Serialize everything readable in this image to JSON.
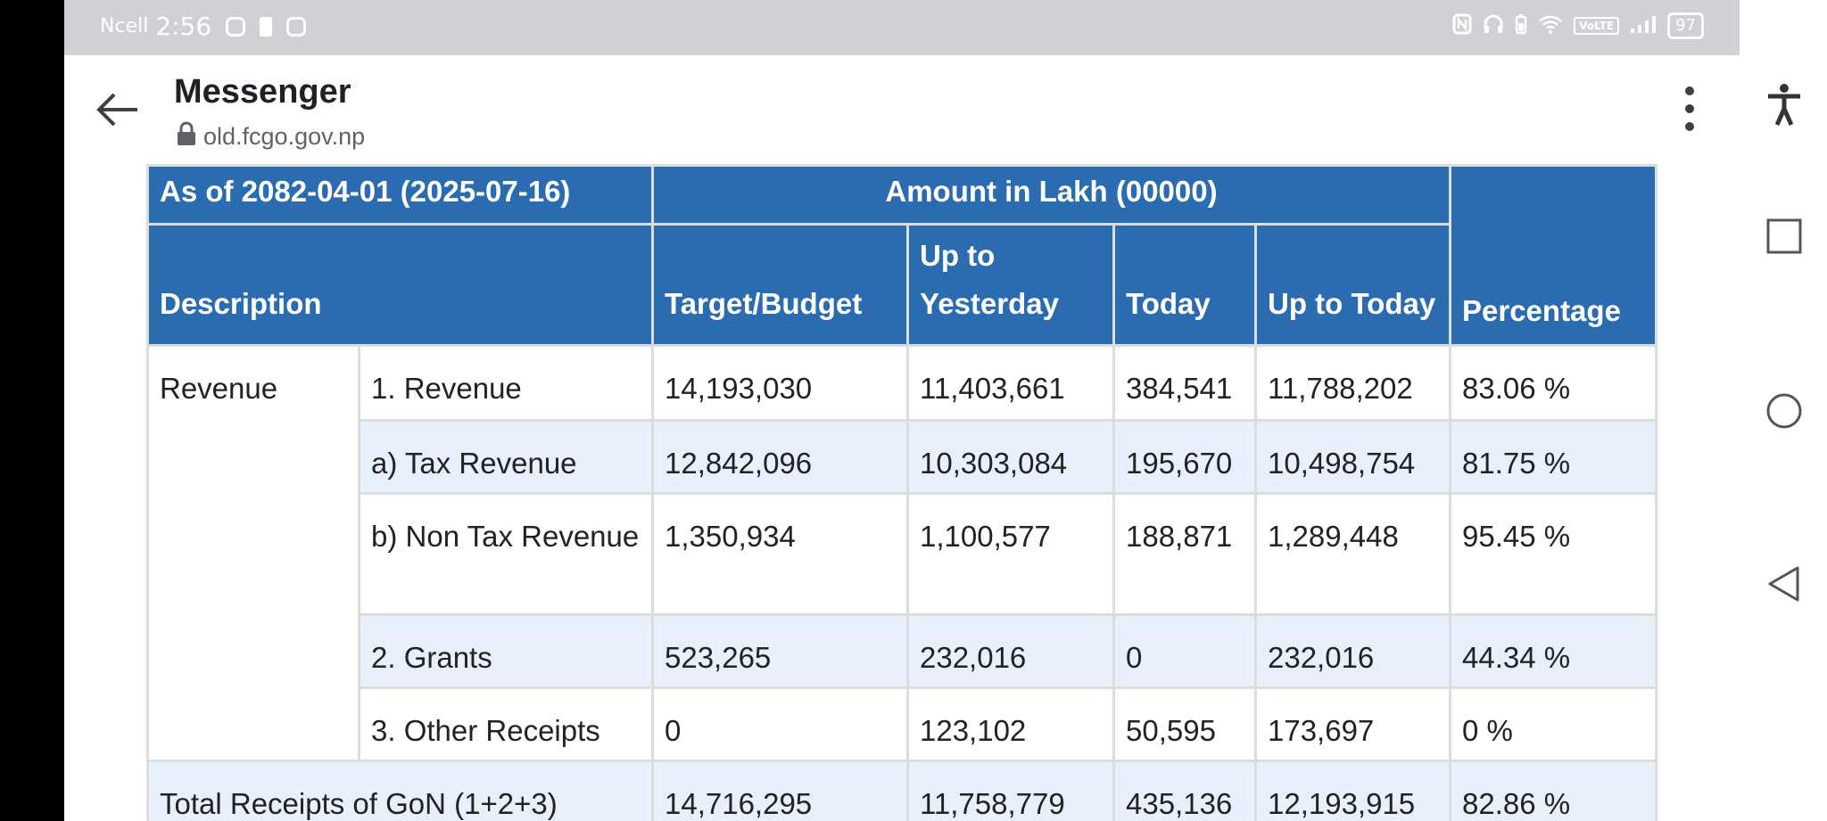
{
  "status_bar": {
    "carrier": "Ncell",
    "time": "2:56",
    "volte": "VoLTE",
    "battery": "97",
    "left_icons": [
      "instagram-icon",
      "alert-icon",
      "instagram-icon"
    ],
    "right_icons": [
      "nfc-icon",
      "headphones-icon",
      "battery-saver-icon",
      "wifi-icon",
      "volte-icon",
      "signal-icon",
      "battery-icon"
    ]
  },
  "app_bar": {
    "title": "Messenger",
    "url": "old.fcgo.gov.np",
    "back_icon": "arrow-back-icon",
    "lock_icon": "lock-icon",
    "menu_icon": "more-vert-icon"
  },
  "table": {
    "header_row1": {
      "as_of": "As of 2082-04-01 (2025-07-16)",
      "amount_in": "Amount in Lakh (00000)"
    },
    "header_row2": {
      "description": "Description",
      "target_budget": "Target/Budget",
      "up_to_yesterday": "Up to Yesterday",
      "today": "Today",
      "up_to_today": "Up to Today",
      "percentage": "Percentage"
    },
    "category_revenue": "Revenue",
    "rows": [
      {
        "item": "1. Revenue",
        "target": "14,193,030",
        "yesterday": "11,403,661",
        "today": "384,541",
        "uptotoday": "11,788,202",
        "percentage": "83.06 %"
      },
      {
        "item": "a) Tax Revenue",
        "target": "12,842,096",
        "yesterday": "10,303,084",
        "today": "195,670",
        "uptotoday": "10,498,754",
        "percentage": "81.75 %"
      },
      {
        "item": "b) Non Tax Revenue",
        "target": "1,350,934",
        "yesterday": "1,100,577",
        "today": "188,871",
        "uptotoday": "1,289,448",
        "percentage": "95.45 %"
      },
      {
        "item": "2. Grants",
        "target": "523,265",
        "yesterday": "232,016",
        "today": "0",
        "uptotoday": "232,016",
        "percentage": "44.34 %"
      },
      {
        "item": "3. Other Receipts",
        "target": "0",
        "yesterday": "123,102",
        "today": "50,595",
        "uptotoday": "173,697",
        "percentage": "0 %"
      }
    ],
    "total": {
      "label": "Total Receipts of GoN (1+2+3)",
      "target": "14,716,295",
      "yesterday": "11,758,779",
      "today": "435,136",
      "uptotoday": "12,193,915",
      "percentage": "82.86 %"
    }
  },
  "nav_bar": {
    "accessibility": "accessibility-icon",
    "recents": "recents-square-icon",
    "home": "home-circle-icon",
    "back": "back-triangle-icon"
  },
  "colors": {
    "header_blue": "#2b6cb0",
    "row_alt_blue": "#e8f1fb",
    "status_bar_gray": "#cfd1d4"
  }
}
